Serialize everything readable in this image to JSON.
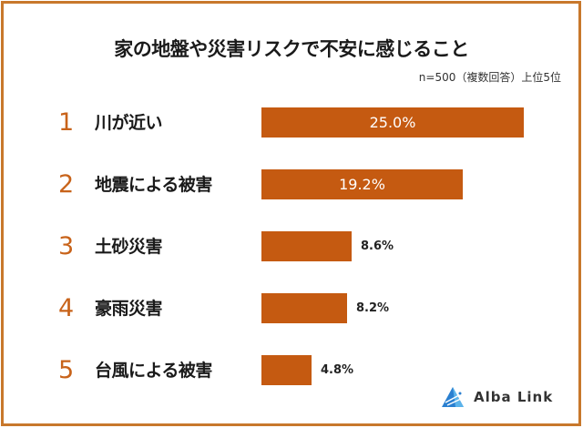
{
  "title": "家の地盤や災害リスクで不安に感じること",
  "note": "n=500（複数回答）上位5位",
  "colors": {
    "bar": "#c55a11",
    "rank": "#c8631a",
    "border": "#c8782c"
  },
  "logo": {
    "icon": "alba-link-triangle-icon",
    "text": "Alba Link"
  },
  "chart_data": {
    "type": "bar",
    "orientation": "horizontal",
    "title": "家の地盤や災害リスクで不安に感じること",
    "subtitle": "n=500（複数回答）上位5位",
    "categories": [
      "川が近い",
      "地震による被害",
      "土砂災害",
      "豪雨災害",
      "台風による被害"
    ],
    "ranks": [
      "1",
      "2",
      "3",
      "4",
      "5"
    ],
    "values": [
      25.0,
      19.2,
      8.6,
      8.2,
      4.8
    ],
    "value_labels": [
      "25.0%",
      "19.2%",
      "8.6%",
      "8.2%",
      "4.8%"
    ],
    "xlabel": "",
    "ylabel": "",
    "xlim": [
      0,
      25
    ],
    "grid": false,
    "legend": "none"
  }
}
